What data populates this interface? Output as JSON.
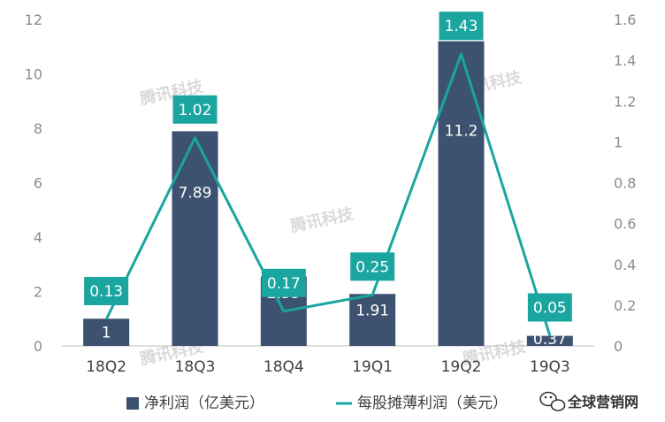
{
  "chart_data": {
    "type": "bar",
    "categories": [
      "18Q2",
      "18Q3",
      "18Q4",
      "19Q1",
      "19Q2",
      "19Q3"
    ],
    "series": [
      {
        "name": "净利润（亿美元）",
        "type": "bar",
        "axis": "left",
        "values": [
          1,
          7.89,
          2.55,
          1.91,
          11.2,
          0.37
        ],
        "labels": [
          "1",
          "7.89",
          "2.55",
          "1.91",
          "11.2",
          "0.37"
        ]
      },
      {
        "name": "每股摊薄利润（美元）",
        "type": "line",
        "axis": "right",
        "values": [
          0.13,
          1.02,
          0.17,
          0.25,
          1.43,
          0.05
        ],
        "labels": [
          "0.13",
          "1.02",
          "0.17",
          "0.25",
          "1.43",
          "0.05"
        ]
      }
    ],
    "y_left": {
      "min": 0,
      "max": 12,
      "ticks": [
        "0",
        "2",
        "4",
        "6",
        "8",
        "10",
        "12"
      ]
    },
    "y_right": {
      "min": 0,
      "max": 1.6,
      "ticks": [
        "0",
        "0.2",
        "0.4",
        "0.6",
        "0.8",
        "1",
        "1.2",
        "1.4",
        "1.6"
      ]
    },
    "grid": false,
    "legend": "bottom",
    "colors": {
      "bar": "#3d5270",
      "line": "#1aa5a0",
      "label_box": "#1aa5a0"
    }
  },
  "watermark": "腾讯科技",
  "brand": {
    "name": "全球营销网",
    "icon": "wechat-icon"
  }
}
